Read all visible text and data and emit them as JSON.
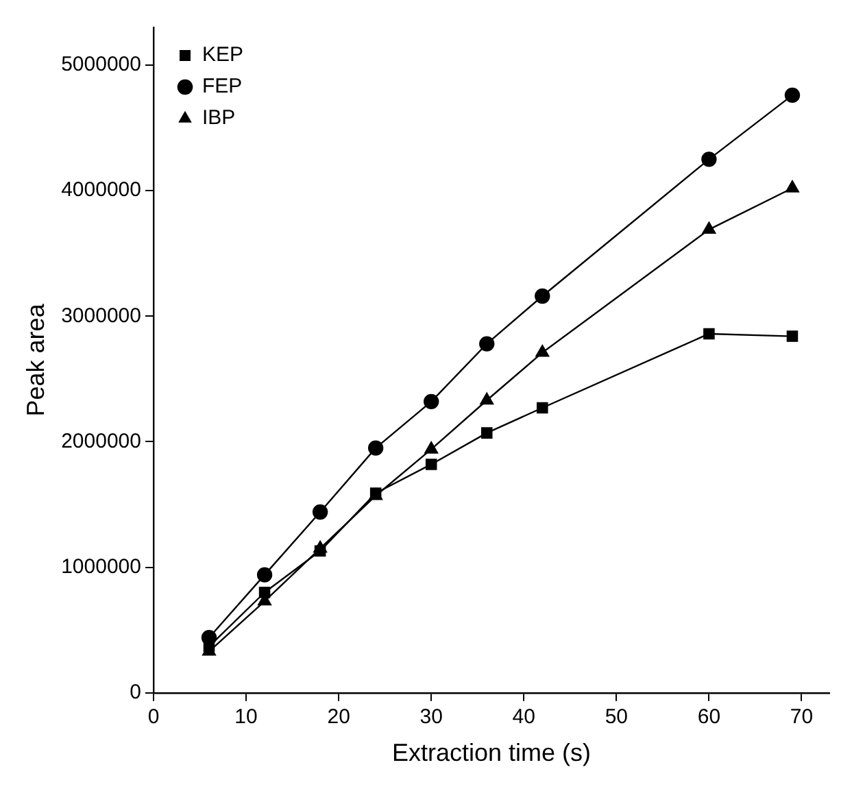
{
  "chart_data": {
    "type": "line",
    "xlabel": "Extraction time (s)",
    "ylabel": "Peak area",
    "x": [
      6,
      12,
      18,
      24,
      30,
      36,
      42,
      60,
      69
    ],
    "series": [
      {
        "name": "KEP",
        "color": "#000000",
        "marker": "square",
        "values": [
          370000,
          800000,
          1130000,
          1590000,
          1820000,
          2070000,
          2270000,
          2860000,
          2840000
        ]
      },
      {
        "name": "FEP",
        "color": "#000000",
        "marker": "circle",
        "values": [
          440000,
          940000,
          1440000,
          1950000,
          2320000,
          2780000,
          3160000,
          4250000,
          4760000
        ]
      },
      {
        "name": "IBP",
        "color": "#000000",
        "marker": "triangle",
        "values": [
          330000,
          730000,
          1150000,
          1570000,
          1940000,
          2330000,
          2710000,
          3690000,
          4020000
        ]
      }
    ],
    "xlim": [
      0,
      73
    ],
    "xticks": [
      0,
      10,
      20,
      30,
      40,
      50,
      60,
      70
    ],
    "ylim": [
      0,
      5300000
    ],
    "yticks": [
      0,
      1000000,
      2000000,
      3000000,
      4000000,
      5000000
    ],
    "grid": false,
    "legend": "top left",
    "line_style": "solid"
  }
}
